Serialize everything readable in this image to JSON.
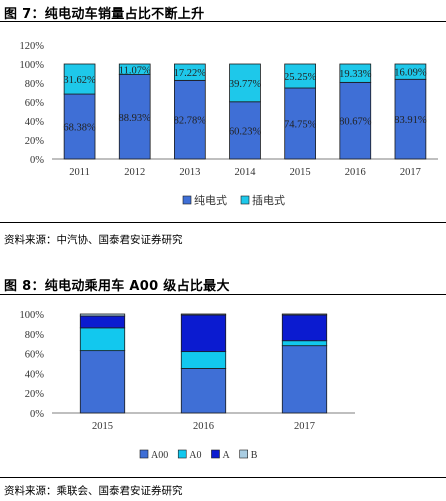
{
  "figure7": {
    "title": "图 7：纯电动车销量占比不断上升",
    "source": "资料来源：中汽协、国泰君安证券研究"
  },
  "figure8": {
    "title": "图 8：纯电动乘用车 A00 级占比最大",
    "source": "资料来源：乘联会、国泰君安证券研究"
  },
  "chart_data": [
    {
      "type": "bar",
      "stacked": true,
      "categories": [
        "2011",
        "2012",
        "2013",
        "2014",
        "2015",
        "2016",
        "2017"
      ],
      "series": [
        {
          "name": "纯电式",
          "color": "#3f6fd6",
          "values": [
            68.38,
            88.93,
            82.78,
            60.23,
            74.75,
            80.67,
            83.91
          ],
          "labels": [
            "68.38%",
            "88.93%",
            "82.78%",
            "60.23%",
            "74.75%",
            "80.67%",
            "83.91%"
          ]
        },
        {
          "name": "插电式",
          "color": "#1ec8ea",
          "values": [
            31.62,
            11.07,
            17.22,
            39.77,
            25.25,
            19.33,
            16.09
          ],
          "labels": [
            "31.62%",
            "11.07%",
            "17.22%",
            "39.77%",
            "25.25%",
            "19.33%",
            "16.09%"
          ]
        }
      ],
      "ylim": [
        0,
        120
      ],
      "yticks": [
        "0%",
        "20%",
        "40%",
        "60%",
        "80%",
        "100%",
        "120%"
      ],
      "legend": "bottom",
      "grid": false
    },
    {
      "type": "bar",
      "stacked": true,
      "categories": [
        "2015",
        "2016",
        "2017"
      ],
      "series": [
        {
          "name": "A00",
          "color": "#3f6fd6",
          "values": [
            63,
            45,
            68
          ]
        },
        {
          "name": "A0",
          "color": "#12c8ee",
          "values": [
            23,
            17,
            5
          ]
        },
        {
          "name": "A",
          "color": "#0b1bd0",
          "values": [
            12,
            37,
            26
          ]
        },
        {
          "name": "B",
          "color": "#a9cde2",
          "values": [
            2,
            1,
            1
          ]
        }
      ],
      "ylim": [
        0,
        100
      ],
      "yticks": [
        "0%",
        "20%",
        "40%",
        "60%",
        "80%",
        "100%"
      ],
      "legend": "bottom",
      "grid": false
    }
  ]
}
